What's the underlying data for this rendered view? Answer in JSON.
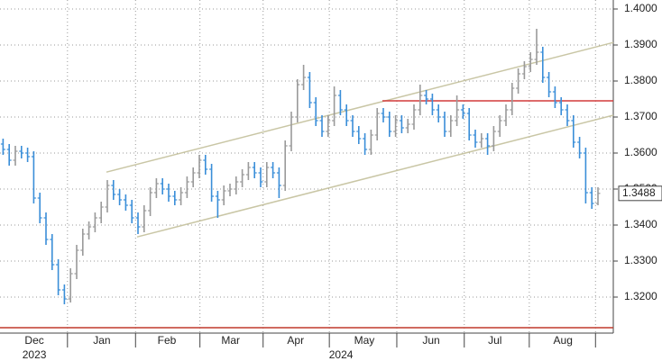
{
  "chart_data": {
    "type": "ohlc",
    "x": [
      0,
      1,
      2,
      3,
      4,
      5,
      6,
      7,
      8,
      9,
      10,
      11,
      12,
      13,
      14,
      15,
      16,
      17,
      18,
      19,
      20,
      21,
      22,
      23,
      24,
      25,
      26,
      27,
      28,
      29,
      30,
      31,
      32,
      33,
      34,
      35,
      36,
      37,
      38,
      39,
      40,
      41,
      42,
      43,
      44,
      45,
      46,
      47,
      48,
      49,
      50,
      51,
      52,
      53,
      54,
      55,
      56,
      57,
      58,
      59,
      60,
      61,
      62,
      63,
      64,
      65,
      66,
      67,
      68,
      69,
      70,
      71,
      72,
      73,
      74,
      75,
      76,
      77,
      78,
      79,
      80,
      81,
      82,
      83,
      84,
      85,
      86,
      87,
      88,
      89,
      90,
      91,
      92,
      93,
      94,
      95,
      96,
      97
    ],
    "open": [
      1.3625,
      1.361,
      1.358,
      1.3605,
      1.36,
      1.359,
      1.3475,
      1.342,
      1.336,
      1.329,
      1.322,
      1.3195,
      1.3265,
      1.333,
      1.3375,
      1.3395,
      1.342,
      1.345,
      1.351,
      1.3485,
      1.347,
      1.3455,
      1.342,
      1.3395,
      1.344,
      1.349,
      1.3515,
      1.35,
      1.348,
      1.347,
      1.349,
      1.352,
      1.3545,
      1.358,
      1.3555,
      1.348,
      1.347,
      1.3495,
      1.35,
      1.352,
      1.354,
      1.356,
      1.3545,
      1.352,
      1.356,
      1.3545,
      1.351,
      1.362,
      1.37,
      1.379,
      1.381,
      1.374,
      1.369,
      1.366,
      1.369,
      1.376,
      1.372,
      1.369,
      1.366,
      1.364,
      1.361,
      1.365,
      1.371,
      1.37,
      1.366,
      1.369,
      1.367,
      1.368,
      1.372,
      1.376,
      1.375,
      1.372,
      1.37,
      1.366,
      1.369,
      1.372,
      1.371,
      1.365,
      1.363,
      1.364,
      1.362,
      1.366,
      1.369,
      1.372,
      1.378,
      1.382,
      1.384,
      1.386,
      1.388,
      1.381,
      1.377,
      1.374,
      1.372,
      1.369,
      1.363,
      1.36,
      1.349,
      1.346
    ],
    "high": [
      1.364,
      1.3625,
      1.362,
      1.362,
      1.3615,
      1.3605,
      1.349,
      1.3435,
      1.3375,
      1.3305,
      1.3235,
      1.328,
      1.3345,
      1.339,
      1.341,
      1.3435,
      1.3465,
      1.3525,
      1.3525,
      1.35,
      1.3485,
      1.347,
      1.3435,
      1.3455,
      1.3505,
      1.353,
      1.353,
      1.3515,
      1.3495,
      1.3505,
      1.3535,
      1.356,
      1.3595,
      1.3595,
      1.357,
      1.3495,
      1.351,
      1.3515,
      1.3535,
      1.3555,
      1.3575,
      1.3575,
      1.356,
      1.3575,
      1.3575,
      1.356,
      1.3635,
      1.3715,
      1.3805,
      1.3845,
      1.3825,
      1.3755,
      1.3705,
      1.3705,
      1.3785,
      1.3775,
      1.3735,
      1.3705,
      1.3675,
      1.3655,
      1.3665,
      1.3725,
      1.3725,
      1.3715,
      1.3705,
      1.3705,
      1.3695,
      1.3735,
      1.379,
      1.3775,
      1.3765,
      1.3735,
      1.3715,
      1.3705,
      1.376,
      1.3735,
      1.3725,
      1.3665,
      1.3655,
      1.3655,
      1.3675,
      1.3705,
      1.3735,
      1.3795,
      1.3835,
      1.3855,
      1.388,
      1.3945,
      1.3895,
      1.3825,
      1.3785,
      1.3755,
      1.3735,
      1.3705,
      1.3645,
      1.3615,
      1.3505,
      1.3505
    ],
    "low": [
      1.3595,
      1.3565,
      1.3565,
      1.3585,
      1.3575,
      1.346,
      1.3405,
      1.3345,
      1.3275,
      1.3205,
      1.318,
      1.3185,
      1.325,
      1.3315,
      1.336,
      1.338,
      1.3405,
      1.3435,
      1.347,
      1.3455,
      1.344,
      1.3405,
      1.3375,
      1.338,
      1.3425,
      1.3475,
      1.3485,
      1.3465,
      1.3455,
      1.3455,
      1.3475,
      1.3505,
      1.353,
      1.354,
      1.3465,
      1.342,
      1.3455,
      1.348,
      1.3485,
      1.3505,
      1.3525,
      1.353,
      1.3505,
      1.3505,
      1.353,
      1.3475,
      1.3495,
      1.3605,
      1.3685,
      1.3775,
      1.3725,
      1.3675,
      1.3645,
      1.3645,
      1.3675,
      1.3705,
      1.3675,
      1.3645,
      1.3625,
      1.3595,
      1.3595,
      1.3635,
      1.3685,
      1.3645,
      1.3645,
      1.3655,
      1.3655,
      1.3665,
      1.3705,
      1.3735,
      1.3705,
      1.3685,
      1.3645,
      1.3645,
      1.3675,
      1.3695,
      1.3635,
      1.3615,
      1.3615,
      1.3595,
      1.3605,
      1.3645,
      1.3675,
      1.3705,
      1.3765,
      1.3805,
      1.3825,
      1.3845,
      1.3795,
      1.3755,
      1.3725,
      1.3705,
      1.3675,
      1.3615,
      1.3585,
      1.346,
      1.3445,
      1.3455
    ],
    "close": [
      1.361,
      1.358,
      1.3605,
      1.36,
      1.359,
      1.3475,
      1.342,
      1.336,
      1.329,
      1.322,
      1.3195,
      1.3265,
      1.333,
      1.3375,
      1.3395,
      1.342,
      1.345,
      1.351,
      1.3485,
      1.347,
      1.3455,
      1.342,
      1.3395,
      1.344,
      1.349,
      1.3515,
      1.35,
      1.348,
      1.347,
      1.349,
      1.352,
      1.3545,
      1.358,
      1.3555,
      1.348,
      1.347,
      1.3495,
      1.35,
      1.352,
      1.354,
      1.356,
      1.3545,
      1.352,
      1.356,
      1.3545,
      1.351,
      1.362,
      1.37,
      1.379,
      1.381,
      1.374,
      1.369,
      1.366,
      1.369,
      1.376,
      1.372,
      1.369,
      1.366,
      1.364,
      1.361,
      1.365,
      1.371,
      1.37,
      1.366,
      1.369,
      1.367,
      1.368,
      1.372,
      1.376,
      1.375,
      1.372,
      1.37,
      1.366,
      1.369,
      1.372,
      1.371,
      1.365,
      1.363,
      1.364,
      1.362,
      1.366,
      1.369,
      1.372,
      1.378,
      1.382,
      1.384,
      1.386,
      1.388,
      1.381,
      1.377,
      1.374,
      1.372,
      1.369,
      1.363,
      1.36,
      1.349,
      1.346,
      1.3488
    ],
    "up_color": "#9a9a9a",
    "down_color": "#3a8ed8",
    "xlim": [
      -0.5,
      99.5
    ],
    "ylim": [
      1.31,
      1.4025
    ],
    "yticks": [
      {
        "value": 1.32,
        "label": "1.3200"
      },
      {
        "value": 1.33,
        "label": "1.3300"
      },
      {
        "value": 1.34,
        "label": "1.3400"
      },
      {
        "value": 1.35,
        "label": "1.3500"
      },
      {
        "value": 1.36,
        "label": "1.3600"
      },
      {
        "value": 1.37,
        "label": "1.3700"
      },
      {
        "value": 1.38,
        "label": "1.3800"
      },
      {
        "value": 1.39,
        "label": "1.3900"
      },
      {
        "value": 1.4,
        "label": "1.4000"
      }
    ],
    "xticks": [
      10.5,
      21.6,
      32.1,
      42.4,
      53.2,
      64.2,
      75.2,
      85.8,
      96.6
    ],
    "month_labels": [
      {
        "value": 5.1,
        "label": "Dec"
      },
      {
        "value": 16.1,
        "label": "Jan"
      },
      {
        "value": 26.7,
        "label": "Feb"
      },
      {
        "value": 37.1,
        "label": "Mar"
      },
      {
        "value": 47.7,
        "label": "Apr"
      },
      {
        "value": 58.9,
        "label": "May"
      },
      {
        "value": 69.8,
        "label": "Jun"
      },
      {
        "value": 80.2,
        "label": "Jul"
      },
      {
        "value": 91.3,
        "label": "Aug"
      }
    ],
    "year_labels": [
      {
        "value": 5.1,
        "label": "2023"
      },
      {
        "value": 55.1,
        "label": "2024"
      }
    ],
    "grid": true,
    "last_price_label": "1.3488",
    "lines": [
      {
        "x": [
          16.85,
          99.5
        ],
        "y": [
          1.3547,
          1.3907
        ],
        "color": "#c9c6a5"
      },
      {
        "x": [
          21.85,
          99.5
        ],
        "y": [
          1.3367,
          1.3705
        ],
        "color": "#c9c6a5"
      },
      {
        "x": [
          61.85,
          99.5
        ],
        "y": [
          1.3745,
          1.3745
        ],
        "color": "#d23a3a"
      },
      {
        "x": [
          -0.5,
          99.5
        ],
        "y": [
          1.3115,
          1.3115
        ],
        "color": "#c0392b"
      }
    ]
  }
}
